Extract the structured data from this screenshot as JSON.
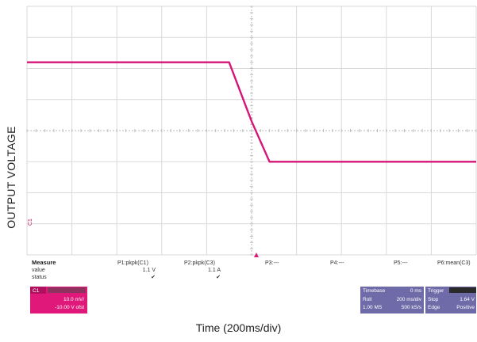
{
  "axes": {
    "y_label": "OUTPUT VOLTAGE",
    "x_label": "Time  (200ms/div)"
  },
  "screen": {
    "channel_marker": "C1",
    "trace_color": "#d6157a",
    "trigger_marker_color": "#e0186f"
  },
  "measure": {
    "title": "Measure",
    "row_labels": [
      "value",
      "status"
    ],
    "columns": [
      {
        "header": "P1:pkpk(C1)",
        "value": "1.1 V",
        "status": "✔"
      },
      {
        "header": "P2:pkpk(C3)",
        "value": "1.1 A",
        "status": "✔"
      },
      {
        "header": "P3:---",
        "value": "",
        "status": ""
      },
      {
        "header": "P4:---",
        "value": "",
        "status": ""
      },
      {
        "header": "P5:---",
        "value": "",
        "status": ""
      },
      {
        "header": "P6:mean(C3)",
        "value": "",
        "status": ""
      }
    ]
  },
  "channel_panel": {
    "label": "C1",
    "line1": "10.0 mV/",
    "line2": "-10.00 V ofst",
    "color": "#e0187a"
  },
  "timebase_panel": {
    "title": "Timebase",
    "offset": "0 ms",
    "mode": "Roll",
    "scale": "200 ms/div",
    "samples": "1.00 MS",
    "rate": "500 kS/s"
  },
  "trigger_panel": {
    "title": "Trigger",
    "mode": "Stop",
    "level": "1.64 V",
    "type": "Edge",
    "slope": "Positive"
  },
  "chart_data": {
    "type": "line",
    "xlabel": "Time  (200ms/div)",
    "ylabel": "OUTPUT VOLTAGE",
    "x_unit": "div",
    "y_unit": "div",
    "xlim": [
      0,
      10
    ],
    "ylim": [
      0,
      8
    ],
    "grid": true,
    "series": [
      {
        "x": [
          0,
          4.5,
          5.0,
          5.4,
          10
        ],
        "y": [
          6.2,
          6.2,
          4.3,
          3.0,
          3.0
        ]
      }
    ]
  }
}
